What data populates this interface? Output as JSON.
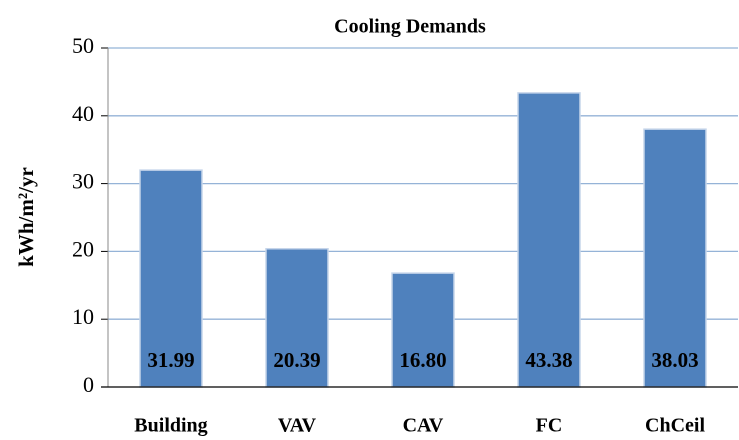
{
  "chart_data": {
    "type": "bar",
    "title": "Cooling Demands",
    "ylabel": "kWh/m²/yr",
    "categories": [
      "Building",
      "VAV",
      "CAV",
      "FC",
      "ChCeil"
    ],
    "values": [
      31.99,
      20.39,
      16.8,
      43.38,
      38.03
    ],
    "value_labels": [
      "31.99",
      "20.39",
      "16.80",
      "43.38",
      "38.03"
    ],
    "color": "#4f81bd",
    "ylim": [
      0,
      50
    ],
    "yticks": [
      0,
      10,
      20,
      30,
      40,
      50
    ],
    "grid": true
  }
}
